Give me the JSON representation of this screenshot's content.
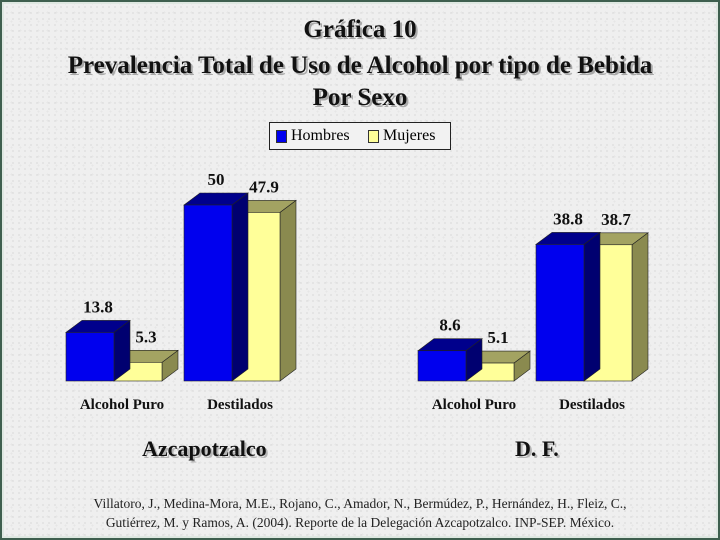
{
  "title": {
    "line1": "Gráfica 10",
    "line2": "Prevalencia Total de Uso de Alcohol por tipo de Bebida",
    "line3": "Por Sexo"
  },
  "legend": [
    {
      "name": "Hombres",
      "color": "#0000ee"
    },
    {
      "name": "Mujeres",
      "color": "#ffff99"
    }
  ],
  "chart_data": [
    {
      "type": "bar",
      "group": "Azcapotzalco",
      "categories": [
        "Alcohol Puro",
        "Destilados"
      ],
      "series": [
        {
          "name": "Hombres",
          "values": [
            13.8,
            50
          ]
        },
        {
          "name": "Mujeres",
          "values": [
            5.3,
            47.9
          ]
        }
      ],
      "ylim": [
        0,
        50
      ],
      "grid": false,
      "legend_position": "top-center"
    },
    {
      "type": "bar",
      "group": "D. F.",
      "categories": [
        "Alcohol Puro",
        "Destilados"
      ],
      "series": [
        {
          "name": "Hombres",
          "values": [
            8.6,
            38.8
          ]
        },
        {
          "name": "Mujeres",
          "values": [
            5.1,
            38.7
          ]
        }
      ],
      "ylim": [
        0,
        50
      ],
      "grid": false,
      "legend_position": "top-center"
    }
  ],
  "citation": {
    "line1": "Villatoro, J., Medina-Mora, M.E., Rojano, C., Amador, N., Bermúdez, P., Hernández, H., Fleiz, C.,",
    "line2": "Gutiérrez, M. y Ramos, A. (2004). Reporte de la Delegación Azcapotzalco. INP-SEP. México."
  }
}
